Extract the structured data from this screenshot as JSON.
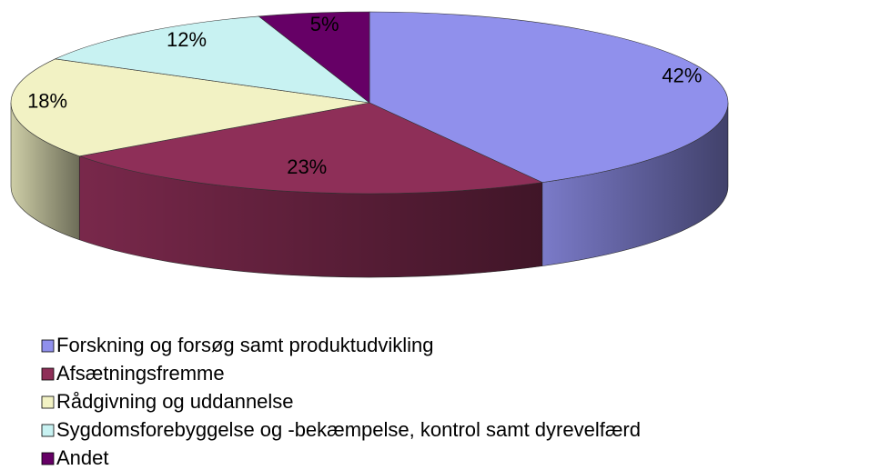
{
  "chart_data": {
    "type": "pie3d",
    "categories": [
      "Forskning og forsøg samt produktudvikling",
      "Afsætningsfremme",
      "Rådgivning og uddannelse",
      "Sygdomsforebyggelse og -bekæmpelse, kontrol samt dyrevelfærd",
      "Andet"
    ],
    "values": [
      42,
      23,
      18,
      12,
      5
    ],
    "value_labels": [
      "42%",
      "23%",
      "18%",
      "12%",
      "5%"
    ],
    "colors": [
      "#9090ec",
      "#8e2f58",
      "#f2f2c4",
      "#c8f2f2",
      "#660066"
    ],
    "legend": "bottom-left"
  }
}
